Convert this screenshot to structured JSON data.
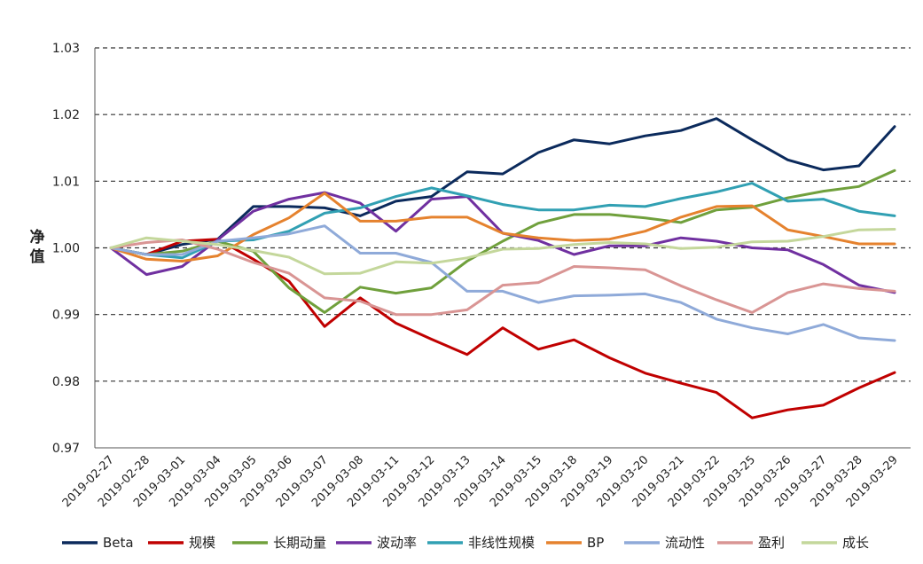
{
  "chart_data": {
    "type": "line",
    "title": "",
    "xlabel": "",
    "ylabel": "净值",
    "ylim": [
      0.97,
      1.03
    ],
    "yticks": [
      "0.97",
      "0.98",
      "0.99",
      "1.00",
      "1.01",
      "1.02",
      "1.03"
    ],
    "grid": "horizontal dashed",
    "legend_position": "bottom",
    "x": [
      "2019-02-27",
      "2019-02-28",
      "2019-03-01",
      "2019-03-04",
      "2019-03-05",
      "2019-03-06",
      "2019-03-07",
      "2019-03-08",
      "2019-03-11",
      "2019-03-12",
      "2019-03-13",
      "2019-03-14",
      "2019-03-15",
      "2019-03-18",
      "2019-03-19",
      "2019-03-20",
      "2019-03-21",
      "2019-03-22",
      "2019-03-25",
      "2019-03-26",
      "2019-03-27",
      "2019-03-28",
      "2019-03-29"
    ],
    "series": [
      {
        "name": "Beta",
        "color": "#0b2a5c",
        "values": [
          1.0,
          0.999,
          1.0005,
          1.0013,
          1.0062,
          1.0062,
          1.006,
          1.0048,
          1.007,
          1.0077,
          1.0114,
          1.0111,
          1.0143,
          1.0162,
          1.0156,
          1.0168,
          1.0176,
          1.0194,
          1.0162,
          1.0132,
          1.0117,
          1.0123,
          1.0182
        ]
      },
      {
        "name": "规模",
        "color": "#c00000",
        "values": [
          1.0,
          0.999,
          1.001,
          1.0013,
          0.9983,
          0.995,
          0.9882,
          0.9925,
          0.9887,
          0.9863,
          0.984,
          0.988,
          0.9848,
          0.9862,
          0.9835,
          0.9812,
          0.9797,
          0.9783,
          0.9745,
          0.9757,
          0.9764,
          0.979,
          0.9813
        ]
      },
      {
        "name": "长期动量",
        "color": "#70a03c",
        "values": [
          1.0,
          0.999,
          0.9995,
          1.001,
          0.9995,
          0.994,
          0.9903,
          0.9941,
          0.9932,
          0.994,
          0.998,
          1.001,
          1.0037,
          1.005,
          1.005,
          1.0045,
          1.0038,
          1.0057,
          1.0061,
          1.0075,
          1.0085,
          1.0092,
          1.0116
        ]
      },
      {
        "name": "波动率",
        "color": "#7030a0",
        "values": [
          1.0,
          0.996,
          0.9972,
          1.0012,
          1.0055,
          1.0073,
          1.0083,
          1.0067,
          1.0025,
          1.0073,
          1.0077,
          1.0022,
          1.0011,
          0.999,
          1.0003,
          1.0003,
          1.0015,
          1.001,
          1.0,
          0.9997,
          0.9975,
          0.9944,
          0.9933
        ]
      },
      {
        "name": "非线性规模",
        "color": "#31a0b3",
        "values": [
          1.0,
          0.999,
          0.9985,
          1.001,
          1.0012,
          1.0025,
          1.0052,
          1.006,
          1.0077,
          1.009,
          1.0078,
          1.0065,
          1.0057,
          1.0057,
          1.0064,
          1.0062,
          1.0074,
          1.0084,
          1.0097,
          1.007,
          1.0073,
          1.0055,
          1.0048
        ]
      },
      {
        "name": "BP",
        "color": "#e5822e",
        "values": [
          1.0,
          0.9983,
          0.998,
          0.9988,
          1.002,
          1.0045,
          1.0082,
          1.004,
          1.004,
          1.0046,
          1.0046,
          1.0022,
          1.0015,
          1.0011,
          1.0013,
          1.0025,
          1.0046,
          1.0062,
          1.0063,
          1.0027,
          1.0017,
          1.0006,
          1.0006
        ]
      },
      {
        "name": "流动性",
        "color": "#8faad9",
        "values": [
          1.0,
          0.999,
          0.999,
          1.001,
          1.0015,
          1.0021,
          1.0033,
          0.9992,
          0.9992,
          0.9978,
          0.9935,
          0.9935,
          0.9918,
          0.9928,
          0.9929,
          0.9931,
          0.9918,
          0.9893,
          0.988,
          0.9871,
          0.9885,
          0.9865,
          0.9861
        ]
      },
      {
        "name": "盈利",
        "color": "#d99594",
        "values": [
          1.0,
          1.0008,
          1.0012,
          0.9998,
          0.9978,
          0.9962,
          0.9925,
          0.992,
          0.99,
          0.99,
          0.9907,
          0.9944,
          0.9948,
          0.9972,
          0.997,
          0.9967,
          0.9943,
          0.9922,
          0.9903,
          0.9933,
          0.9946,
          0.9939,
          0.9935
        ]
      },
      {
        "name": "成长",
        "color": "#c4d79b",
        "values": [
          1.0,
          1.0015,
          1.001,
          1.0005,
          0.9996,
          0.9986,
          0.9961,
          0.9962,
          0.9979,
          0.9977,
          0.9985,
          0.9998,
          0.9999,
          1.0005,
          1.0008,
          1.0006,
          0.9999,
          1.0001,
          1.0009,
          1.001,
          1.0017,
          1.0027,
          1.0028
        ]
      }
    ]
  }
}
